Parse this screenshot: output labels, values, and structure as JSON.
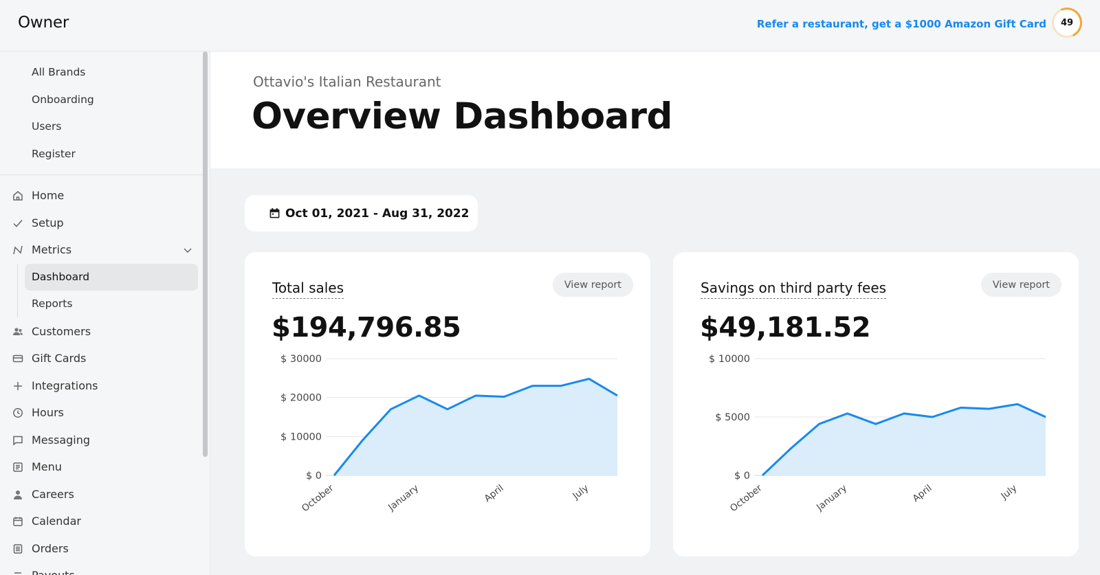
{
  "app": {
    "logo": "Owner",
    "refer_link": "Refer a restaurant, get a $1000 Amazon Gift Card",
    "score": "49"
  },
  "sidebar": {
    "top_links": [
      {
        "label": "All Brands"
      },
      {
        "label": "Onboarding"
      },
      {
        "label": "Users"
      },
      {
        "label": "Register"
      }
    ],
    "nav": [
      {
        "label": "Home",
        "icon": "home-icon"
      },
      {
        "label": "Setup",
        "icon": "check-icon"
      },
      {
        "label": "Metrics",
        "icon": "metrics-icon",
        "expanded": true
      },
      {
        "label": "Customers",
        "icon": "customers-icon"
      },
      {
        "label": "Gift Cards",
        "icon": "card-icon"
      },
      {
        "label": "Integrations",
        "icon": "plus-icon"
      },
      {
        "label": "Hours",
        "icon": "clock-icon"
      },
      {
        "label": "Messaging",
        "icon": "message-icon"
      },
      {
        "label": "Menu",
        "icon": "menu-icon"
      },
      {
        "label": "Careers",
        "icon": "person-icon"
      },
      {
        "label": "Calendar",
        "icon": "calendar-icon"
      },
      {
        "label": "Orders",
        "icon": "orders-icon"
      },
      {
        "label": "Payouts",
        "icon": "payouts-icon"
      }
    ],
    "metrics_sub": [
      {
        "label": "Dashboard",
        "active": true
      },
      {
        "label": "Reports",
        "active": false
      }
    ]
  },
  "header": {
    "restaurant": "Ottavio's Italian Restaurant",
    "title": "Overview Dashboard"
  },
  "date_range": "Oct 01, 2021 - Aug 31, 2022",
  "cards": [
    {
      "title": "Total sales",
      "view_label": "View report",
      "value": "$194,796.85"
    },
    {
      "title": "Savings on third party fees",
      "view_label": "View report",
      "value": "$49,181.52"
    }
  ],
  "chart_data": [
    {
      "type": "area",
      "title": "Total sales",
      "x": [
        "Oct 2021",
        "Nov 2021",
        "Dec 2021",
        "Jan 2022",
        "Feb 2022",
        "Mar 2022",
        "Apr 2022",
        "May 2022",
        "Jun 2022",
        "Jul 2022",
        "Aug 2022"
      ],
      "tick_labels": [
        "October",
        "January",
        "April",
        "July"
      ],
      "y_ticks": [
        "$ 0",
        "$ 10000",
        "$ 20000",
        "$ 30000"
      ],
      "values": [
        0,
        9000,
        17000,
        20500,
        17000,
        20500,
        20200,
        23000,
        23000,
        24800,
        20500
      ],
      "ylim": [
        0,
        30000
      ],
      "color": "#1789ee",
      "fill": "#dbecfb",
      "grid": true
    },
    {
      "type": "area",
      "title": "Savings on third party fees",
      "x": [
        "Oct 2021",
        "Nov 2021",
        "Dec 2021",
        "Jan 2022",
        "Feb 2022",
        "Mar 2022",
        "Apr 2022",
        "May 2022",
        "Jun 2022",
        "Jul 2022",
        "Aug 2022"
      ],
      "tick_labels": [
        "October",
        "January",
        "April",
        "July"
      ],
      "y_ticks": [
        "$ 0",
        "$ 5000",
        "$ 10000"
      ],
      "values": [
        0,
        2300,
        4400,
        5300,
        4400,
        5300,
        5000,
        5800,
        5700,
        6100,
        5000
      ],
      "ylim": [
        0,
        10000
      ],
      "color": "#1789ee",
      "fill": "#dbecfb",
      "grid": true
    }
  ]
}
